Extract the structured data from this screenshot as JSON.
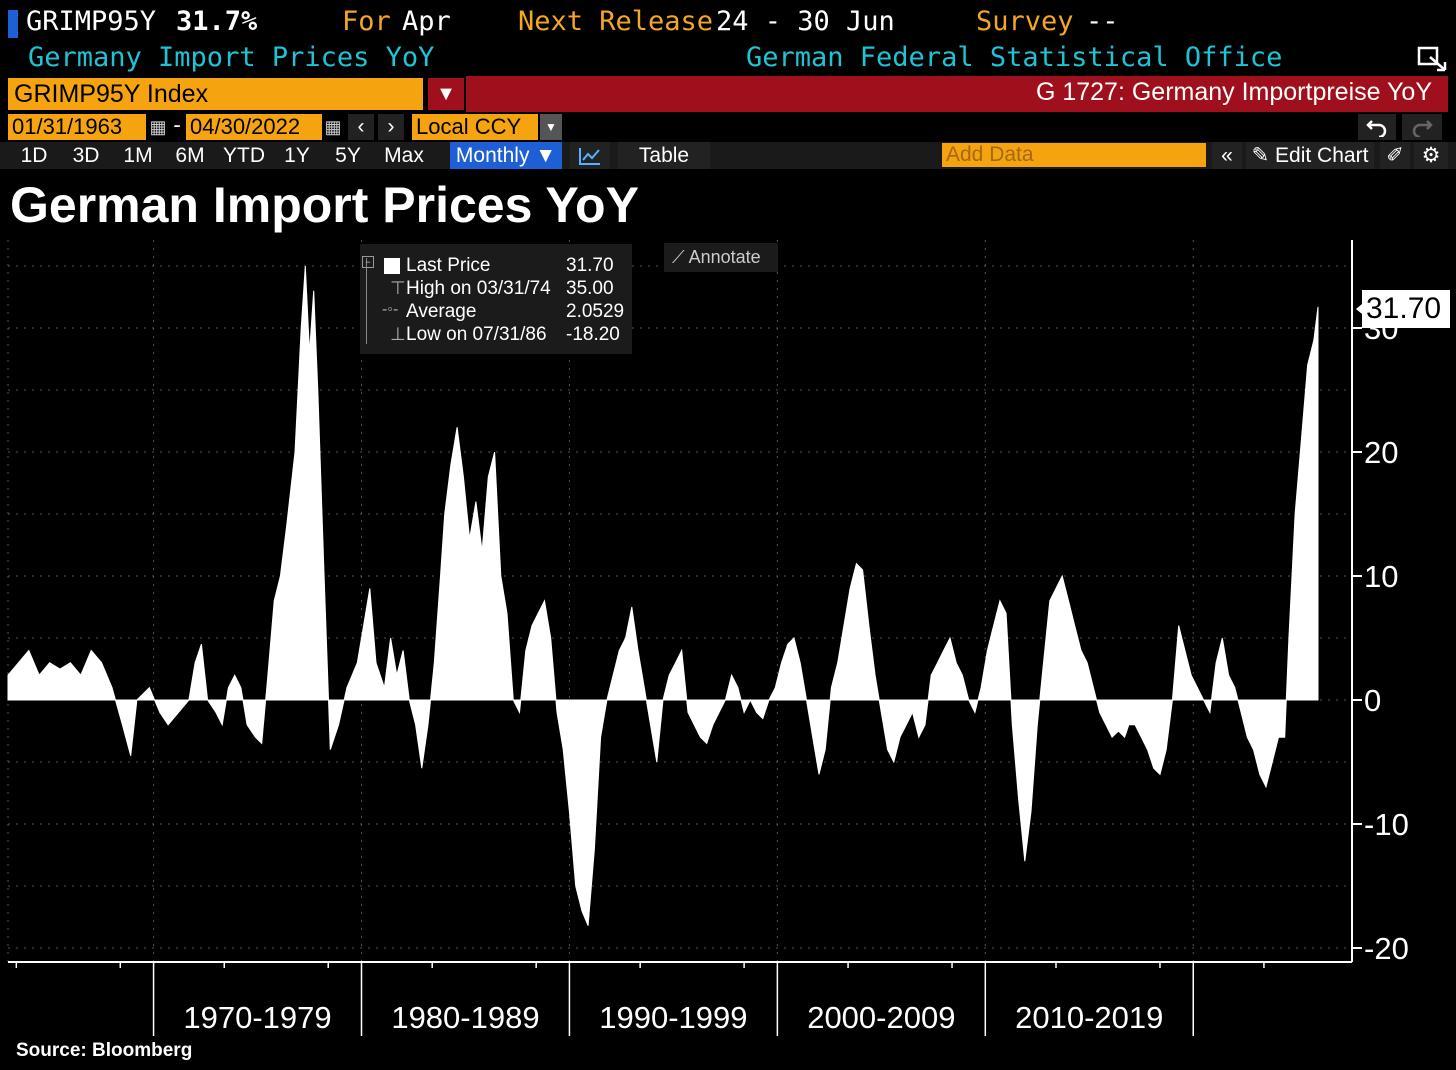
{
  "header": {
    "ticker": "GRIMP95Y",
    "value": "31.7%",
    "for_label": "For",
    "for_period": "Apr",
    "next_release_label": "Next Release",
    "next_release_value": "24 - 30 Jun",
    "survey_label": "Survey",
    "survey_value": "--",
    "description": "Germany Import Prices YoY",
    "source_org": "German Federal Statistical Office"
  },
  "security": {
    "index_field": "GRIMP95Y Index",
    "banner": "G 1727: Germany Importpreise YoY"
  },
  "date_range": {
    "start": "01/31/1963",
    "separator": "-",
    "end": "04/30/2022",
    "currency": "Local CCY"
  },
  "toolbar": {
    "ranges": [
      "1D",
      "3D",
      "1M",
      "6M",
      "YTD",
      "1Y",
      "5Y",
      "Max"
    ],
    "frequency": "Monthly ▼",
    "table_label": "Table",
    "add_data_placeholder": "Add Data",
    "edit_chart_label": "Edit Chart"
  },
  "legend": {
    "last_price_label": "Last Price",
    "last_price_value": "31.70",
    "high_label": "High on 03/31/74",
    "high_value": "35.00",
    "average_label": "Average",
    "average_value": "2.0529",
    "low_label": "Low on 07/31/86",
    "low_value": "-18.20",
    "annotate_label": "Annotate"
  },
  "colors": {
    "background": "#000000",
    "series": "#ffffff",
    "ticker_amber": "#f5a623",
    "cyan": "#1ec3d6",
    "banner_red": "#a0101c",
    "field_orange": "#f5a30f",
    "active_blue": "#1f5fd6"
  },
  "chart_data": {
    "type": "area",
    "title": "German Import Prices YoY",
    "source": "Source: Bloomberg",
    "xlabel": "",
    "ylabel": "",
    "ylim": [
      -20,
      35
    ],
    "y_ticks": [
      30,
      20,
      10,
      0,
      -10,
      -20
    ],
    "last_value_label": "31.70",
    "x_decade_labels": [
      "1970-1979",
      "1980-1989",
      "1990-1999",
      "2000-2009",
      "2010-2019"
    ],
    "grid": true,
    "series": [
      {
        "name": "GRIMP95Y Index",
        "points": [
          [
            1963.0,
            2
          ],
          [
            1963.5,
            3
          ],
          [
            1964.0,
            4
          ],
          [
            1964.5,
            2
          ],
          [
            1965.0,
            3
          ],
          [
            1965.5,
            2.5
          ],
          [
            1966.0,
            3
          ],
          [
            1966.5,
            2
          ],
          [
            1967.0,
            4
          ],
          [
            1967.5,
            3
          ],
          [
            1968.0,
            1
          ],
          [
            1968.5,
            -2
          ],
          [
            1968.9,
            -4.5
          ],
          [
            1969.2,
            0
          ],
          [
            1969.8,
            1
          ],
          [
            1970.3,
            -1
          ],
          [
            1970.7,
            -2
          ],
          [
            1971.2,
            -1
          ],
          [
            1971.7,
            0
          ],
          [
            1972.0,
            3
          ],
          [
            1972.3,
            4.5
          ],
          [
            1972.6,
            0
          ],
          [
            1973.0,
            -1
          ],
          [
            1973.3,
            -2
          ],
          [
            1973.6,
            1
          ],
          [
            1973.9,
            2
          ],
          [
            1974.2,
            1
          ],
          [
            1974.5,
            -2
          ],
          [
            1974.9,
            -3
          ],
          [
            1975.2,
            -3.5
          ],
          [
            1975.5,
            2
          ],
          [
            1975.8,
            8
          ],
          [
            1976.1,
            10
          ],
          [
            1976.4,
            14
          ],
          [
            1976.8,
            20
          ],
          [
            1977.1,
            30
          ],
          [
            1977.3,
            35
          ],
          [
            1977.5,
            28
          ],
          [
            1977.7,
            33
          ],
          [
            1977.9,
            25
          ],
          [
            1978.2,
            10
          ],
          [
            1978.5,
            -4
          ],
          [
            1978.9,
            -2
          ],
          [
            1979.3,
            1
          ],
          [
            1979.8,
            3
          ],
          [
            1980.1,
            6
          ],
          [
            1980.4,
            9
          ],
          [
            1980.7,
            3
          ],
          [
            1981.1,
            1
          ],
          [
            1981.4,
            5
          ],
          [
            1981.7,
            2
          ],
          [
            1982.0,
            4
          ],
          [
            1982.3,
            0
          ],
          [
            1982.6,
            -2
          ],
          [
            1982.9,
            -5.5
          ],
          [
            1983.2,
            -2
          ],
          [
            1983.5,
            3
          ],
          [
            1983.8,
            10
          ],
          [
            1984.0,
            15
          ],
          [
            1984.3,
            19
          ],
          [
            1984.6,
            22
          ],
          [
            1984.9,
            18
          ],
          [
            1985.2,
            13
          ],
          [
            1985.5,
            16
          ],
          [
            1985.8,
            12
          ],
          [
            1986.1,
            18
          ],
          [
            1986.4,
            20
          ],
          [
            1986.7,
            10
          ],
          [
            1987.0,
            7
          ],
          [
            1987.3,
            0
          ],
          [
            1987.6,
            -1
          ],
          [
            1987.9,
            4
          ],
          [
            1988.2,
            6
          ],
          [
            1988.5,
            7
          ],
          [
            1988.8,
            8
          ],
          [
            1989.1,
            5
          ],
          [
            1989.4,
            -1
          ],
          [
            1989.7,
            -4
          ],
          [
            1990.0,
            -9
          ],
          [
            1990.3,
            -15
          ],
          [
            1990.6,
            -17
          ],
          [
            1990.9,
            -18.2
          ],
          [
            1991.2,
            -12
          ],
          [
            1991.5,
            -3
          ],
          [
            1991.8,
            0
          ],
          [
            1992.1,
            2
          ],
          [
            1992.4,
            4
          ],
          [
            1992.7,
            5
          ],
          [
            1993.0,
            7.5
          ],
          [
            1993.3,
            4
          ],
          [
            1993.6,
            1
          ],
          [
            1993.9,
            -2
          ],
          [
            1994.2,
            -5
          ],
          [
            1994.5,
            0
          ],
          [
            1994.8,
            2
          ],
          [
            1995.1,
            3
          ],
          [
            1995.4,
            4
          ],
          [
            1995.7,
            -1
          ],
          [
            1996.0,
            -2
          ],
          [
            1996.3,
            -3
          ],
          [
            1996.6,
            -3.5
          ],
          [
            1996.9,
            -2
          ],
          [
            1997.2,
            -1
          ],
          [
            1997.5,
            0
          ],
          [
            1997.8,
            2
          ],
          [
            1998.1,
            1
          ],
          [
            1998.4,
            -1
          ],
          [
            1998.7,
            0
          ],
          [
            1999.0,
            -1
          ],
          [
            1999.3,
            -1.5
          ],
          [
            1999.6,
            0
          ],
          [
            1999.9,
            1
          ],
          [
            2000.2,
            3
          ],
          [
            2000.5,
            4.5
          ],
          [
            2000.8,
            5
          ],
          [
            2001.1,
            3
          ],
          [
            2001.4,
            0
          ],
          [
            2001.7,
            -3
          ],
          [
            2002.0,
            -6
          ],
          [
            2002.3,
            -4
          ],
          [
            2002.6,
            1
          ],
          [
            2002.9,
            3
          ],
          [
            2003.2,
            6
          ],
          [
            2003.5,
            9
          ],
          [
            2003.8,
            11
          ],
          [
            2004.1,
            10.5
          ],
          [
            2004.4,
            6
          ],
          [
            2004.7,
            2
          ],
          [
            2005.0,
            -1
          ],
          [
            2005.3,
            -4
          ],
          [
            2005.6,
            -5
          ],
          [
            2005.9,
            -3
          ],
          [
            2006.2,
            -2
          ],
          [
            2006.5,
            -1
          ],
          [
            2006.8,
            -3
          ],
          [
            2007.1,
            -2
          ],
          [
            2007.4,
            2
          ],
          [
            2007.7,
            3
          ],
          [
            2008.0,
            4
          ],
          [
            2008.3,
            5
          ],
          [
            2008.6,
            3
          ],
          [
            2008.9,
            2
          ],
          [
            2009.2,
            0
          ],
          [
            2009.5,
            -1
          ],
          [
            2009.8,
            1
          ],
          [
            2010.1,
            4
          ],
          [
            2010.4,
            6
          ],
          [
            2010.7,
            8
          ],
          [
            2011.0,
            7
          ],
          [
            2011.3,
            -2
          ],
          [
            2011.6,
            -8
          ],
          [
            2011.9,
            -13
          ],
          [
            2012.2,
            -9
          ],
          [
            2012.5,
            -2
          ],
          [
            2012.8,
            3
          ],
          [
            2013.1,
            8
          ],
          [
            2013.4,
            9
          ],
          [
            2013.7,
            10
          ],
          [
            2014.0,
            8
          ],
          [
            2014.3,
            6
          ],
          [
            2014.6,
            4
          ],
          [
            2014.9,
            3
          ],
          [
            2015.2,
            1
          ],
          [
            2015.5,
            -1
          ],
          [
            2015.8,
            -2
          ],
          [
            2016.1,
            -3
          ],
          [
            2016.4,
            -2.5
          ],
          [
            2016.7,
            -3
          ],
          [
            2016.9,
            -2
          ],
          [
            2017.2,
            -2
          ],
          [
            2017.5,
            -3
          ],
          [
            2017.8,
            -4
          ],
          [
            2018.1,
            -5.5
          ],
          [
            2018.4,
            -6
          ],
          [
            2018.7,
            -4
          ],
          [
            2019.0,
            0
          ],
          [
            2019.3,
            6
          ],
          [
            2019.6,
            4
          ],
          [
            2019.9,
            2
          ],
          [
            2020.2,
            1
          ],
          [
            2020.5,
            0
          ],
          [
            2020.8,
            -1
          ],
          [
            2021.1,
            3
          ],
          [
            2021.4,
            5
          ],
          [
            2021.7,
            2
          ],
          [
            2022.0,
            1
          ],
          [
            2022.3,
            -1
          ],
          [
            2022.6,
            -3
          ],
          [
            2022.9,
            -4
          ],
          [
            2023.2,
            -6
          ],
          [
            2023.5,
            -7
          ],
          [
            2023.8,
            -5
          ],
          [
            2024.1,
            -3
          ],
          [
            2024.4,
            -3
          ],
          [
            2024.6,
            5
          ],
          [
            2024.9,
            15
          ],
          [
            2025.2,
            21
          ],
          [
            2025.5,
            27
          ],
          [
            2025.8,
            29
          ],
          [
            2026.0,
            31.7
          ]
        ]
      }
    ]
  }
}
